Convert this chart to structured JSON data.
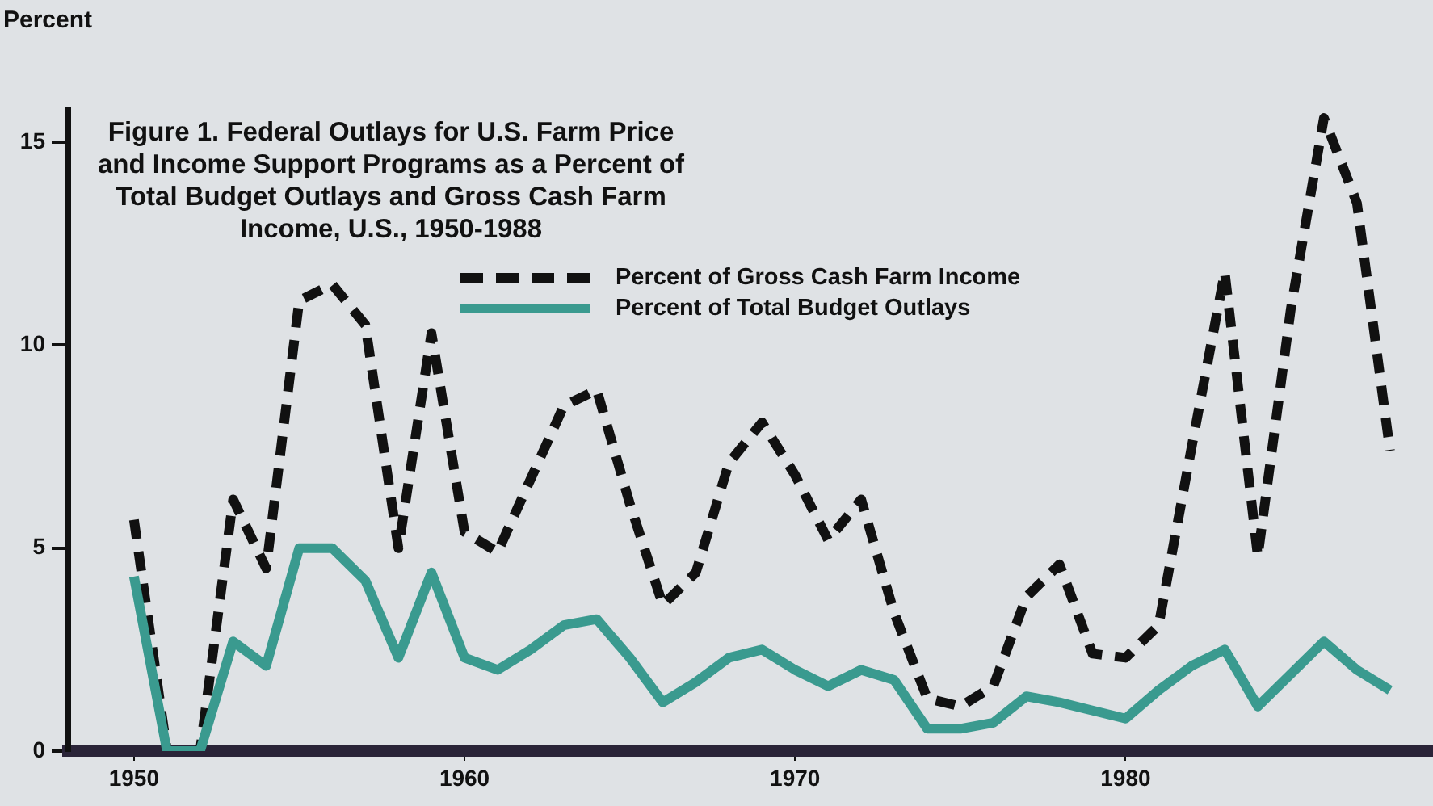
{
  "chart_data": {
    "type": "line",
    "title": "Figure 1. Federal Outlays for U.S. Farm Price and Income Support Programs as a Percent of Total Budget Outlays and Gross Cash Farm Income, U.S., 1950-1988",
    "ylabel": "Percent",
    "x": [
      1950,
      1951,
      1952,
      1953,
      1954,
      1955,
      1956,
      1957,
      1958,
      1959,
      1960,
      1961,
      1962,
      1963,
      1964,
      1965,
      1966,
      1967,
      1968,
      1969,
      1970,
      1971,
      1972,
      1973,
      1974,
      1975,
      1976,
      1977,
      1978,
      1979,
      1980,
      1981,
      1982,
      1983,
      1984,
      1985,
      1986,
      1987,
      1988
    ],
    "series": [
      {
        "name": "Percent of Gross Cash Farm Income",
        "color": "#111111",
        "line_style": "dashed",
        "values": [
          5.7,
          0,
          0,
          6.2,
          4.5,
          11.1,
          11.5,
          10.5,
          5.0,
          10.3,
          5.4,
          4.9,
          6.7,
          8.5,
          8.9,
          6.1,
          3.6,
          4.4,
          7.1,
          8.1,
          6.8,
          5.2,
          6.2,
          3.4,
          1.3,
          1.1,
          1.6,
          3.8,
          4.6,
          2.4,
          2.3,
          3.1,
          7.5,
          11.8,
          4.8,
          10.9,
          15.6,
          13.5,
          7.4
        ]
      },
      {
        "name": "Percent of Total Budget Outlays",
        "color": "#3a9a8f",
        "line_style": "solid",
        "values": [
          4.3,
          0,
          0,
          2.7,
          2.1,
          5.0,
          5.0,
          4.2,
          2.3,
          4.4,
          2.3,
          2.0,
          2.5,
          3.1,
          3.25,
          2.3,
          1.2,
          1.7,
          2.3,
          2.5,
          2.0,
          1.6,
          2.0,
          1.75,
          0.55,
          0.55,
          0.7,
          1.35,
          1.2,
          1.0,
          0.8,
          1.5,
          2.1,
          2.5,
          1.1,
          1.9,
          2.7,
          2.0,
          1.5
        ]
      }
    ],
    "xlim": [
      1948,
      1989.3
    ],
    "xticks": [
      1950,
      1960,
      1970,
      1980
    ],
    "ylim": [
      0,
      15.8
    ],
    "yticks": [
      0,
      5,
      10,
      15
    ],
    "grid": false,
    "legend": "top",
    "marker": "none"
  }
}
